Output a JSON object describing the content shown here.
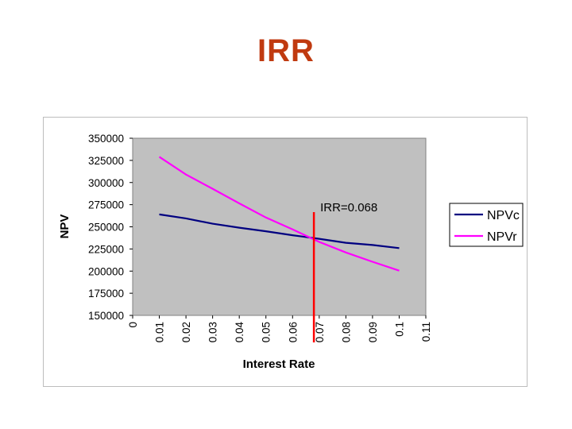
{
  "slide": {
    "title": "IRR"
  },
  "chart_data": {
    "type": "line",
    "title": "",
    "xlabel": "Interest Rate",
    "ylabel": "NPV",
    "xlim": [
      0,
      0.11
    ],
    "ylim": [
      150000,
      350000
    ],
    "x_ticks": [
      "0",
      "0.01",
      "0.02",
      "0.03",
      "0.04",
      "0.05",
      "0.06",
      "0.07",
      "0.08",
      "0.09",
      "0.1",
      "0.11"
    ],
    "y_ticks": [
      "350000",
      "325000",
      "300000",
      "275000",
      "250000",
      "225000",
      "200000",
      "175000",
      "150000"
    ],
    "grid": false,
    "plot_background": "#c0c0c0",
    "legend_position": "right",
    "x": [
      0.01,
      0.02,
      0.03,
      0.04,
      0.05,
      0.06,
      0.07,
      0.08,
      0.09,
      0.1
    ],
    "series": [
      {
        "name": "NPVc",
        "color": "#000080",
        "values": [
          264000,
          259500,
          253500,
          249000,
          245000,
          240500,
          236500,
          232000,
          229500,
          226000
        ]
      },
      {
        "name": "NPVr",
        "color": "#ff00ff",
        "values": [
          329000,
          309000,
          293000,
          276500,
          260500,
          247000,
          233000,
          221000,
          210500,
          200500
        ]
      }
    ],
    "annotations": [
      {
        "type": "vertical-line",
        "x": 0.068,
        "color": "#ff0000",
        "label": "IRR=0.068"
      }
    ]
  }
}
